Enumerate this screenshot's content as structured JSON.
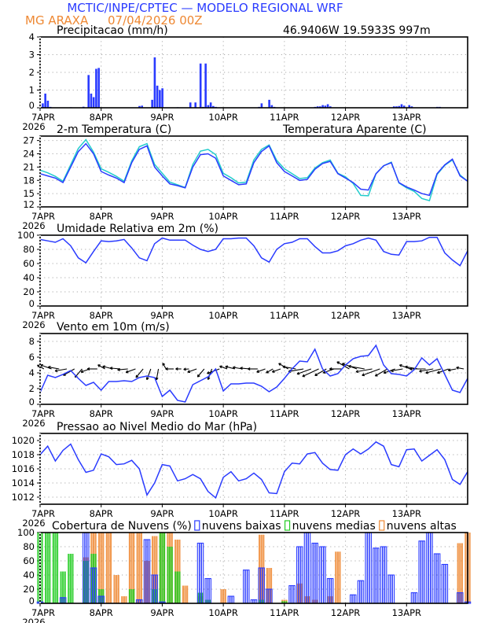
{
  "header": {
    "title": "MCTIC/INPE/CPTEC — MODELO REGIONAL WRF",
    "station": "MG ARAXA",
    "run": "07/04/2026 00Z",
    "location": "46.9406W 19.5933S 997m"
  },
  "colors": {
    "title": "#2a3bff",
    "orange": "#ee8833",
    "line": "#2a3bff",
    "apparent": "#22cccc",
    "medias": "#22cc22",
    "altas": "#ee8833",
    "baixas": "#2a3bff"
  },
  "x_axis": {
    "labels": [
      "7APR",
      "8APR",
      "9APR",
      "10APR",
      "11APR",
      "12APR",
      "13APR"
    ],
    "year": "2026",
    "start": "07APR2026 00Z",
    "end": "14APR2026 00Z",
    "step": "3h"
  },
  "chart_data": [
    {
      "type": "bar",
      "title": "Precipitacao (mm/h)",
      "ylim": [
        0,
        4
      ],
      "yticks": [
        0,
        1,
        2,
        3,
        4
      ],
      "grid": true,
      "series": [
        {
          "step": "1h",
          "points": [
            [
              1,
              0.25
            ],
            [
              2,
              0.8
            ],
            [
              3,
              0.4
            ],
            [
              4,
              0.05
            ],
            [
              12,
              0.03
            ],
            [
              17,
              0.06
            ],
            [
              19,
              1.85
            ],
            [
              20,
              0.8
            ],
            [
              21,
              0.6
            ],
            [
              22,
              2.2
            ],
            [
              23,
              2.25
            ],
            [
              39,
              0.1
            ],
            [
              40,
              0.12
            ],
            [
              44,
              0.45
            ],
            [
              45,
              2.85
            ],
            [
              46,
              1.25
            ],
            [
              47,
              1.0
            ],
            [
              48,
              1.1
            ],
            [
              54,
              0.03
            ],
            [
              59,
              0.3
            ],
            [
              61,
              0.3
            ],
            [
              63,
              2.5
            ],
            [
              64,
              0.05
            ],
            [
              65,
              2.5
            ],
            [
              66,
              0.15
            ],
            [
              67,
              0.3
            ],
            [
              68,
              0.1
            ],
            [
              69,
              0.05
            ],
            [
              86,
              0.05
            ],
            [
              87,
              0.25
            ],
            [
              90,
              0.45
            ],
            [
              91,
              0.15
            ],
            [
              92,
              0.05
            ],
            [
              108,
              0.05
            ],
            [
              109,
              0.08
            ],
            [
              110,
              0.08
            ],
            [
              111,
              0.15
            ],
            [
              112,
              0.12
            ],
            [
              113,
              0.2
            ],
            [
              114,
              0.08
            ],
            [
              139,
              0.08
            ],
            [
              140,
              0.08
            ],
            [
              141,
              0.1
            ],
            [
              142,
              0.2
            ],
            [
              143,
              0.12
            ],
            [
              145,
              0.15
            ],
            [
              146,
              0.08
            ],
            [
              156,
              0.05
            ],
            [
              157,
              0.05
            ]
          ]
        }
      ]
    },
    {
      "type": "line",
      "title": "2-m Temperatura (C)",
      "ylim": [
        12,
        28
      ],
      "yticks": [
        12,
        15,
        18,
        21,
        24,
        27
      ],
      "grid": true,
      "series": [
        {
          "name": "",
          "color": "#2a3bff",
          "values": [
            19.5,
            19,
            18.5,
            17.5,
            21,
            24.5,
            26.3,
            24,
            20,
            19.2,
            18.5,
            17.5,
            22,
            25,
            25.8,
            21,
            19,
            17.2,
            16.8,
            16.3,
            21,
            23.8,
            24,
            23,
            19,
            18,
            17,
            17.2,
            22,
            24.5,
            25.8,
            22,
            20,
            19,
            18,
            18.2,
            20.5,
            21.8,
            22.3,
            19.5,
            18.5,
            17.5,
            16,
            15.8,
            19.5,
            21.3,
            22,
            17.5,
            16.5,
            15.8,
            15,
            14.6,
            19.5,
            21.5,
            22.8,
            19,
            17.8
          ]
        },
        {
          "name": "Temperatura Aparente (C)",
          "color": "#22cccc",
          "values": [
            20.3,
            19.7,
            18.9,
            17.8,
            21.5,
            25.2,
            27.2,
            24.4,
            20.6,
            19.8,
            18.9,
            17.8,
            22.4,
            25.6,
            26.3,
            21.6,
            19.6,
            17.6,
            17,
            16.4,
            21.6,
            24.6,
            25,
            23.8,
            19.6,
            18.6,
            17.4,
            17.6,
            22.6,
            25,
            26,
            22.5,
            20.6,
            19.5,
            18.4,
            18.6,
            20.8,
            22,
            22.6,
            19.6,
            18.8,
            17.3,
            14.6,
            14.5,
            19.5,
            21.3,
            22.1,
            17.4,
            16.3,
            15.5,
            13.9,
            13.4,
            19.3,
            21.4,
            22.6,
            19.2,
            17.8
          ]
        }
      ]
    },
    {
      "type": "line",
      "title": "Umidade Relativa em 2m (%)",
      "ylim": [
        0,
        100
      ],
      "yticks": [
        0,
        20,
        40,
        60,
        80,
        100
      ],
      "grid": true,
      "series": [
        {
          "name": "",
          "color": "#2a3bff",
          "values": [
            94,
            92,
            90,
            95,
            85,
            68,
            61,
            77,
            92,
            91,
            92,
            94,
            82,
            68,
            64,
            88,
            96,
            93,
            93,
            93,
            86,
            80,
            77,
            80,
            95,
            95,
            96,
            96,
            85,
            68,
            62,
            80,
            88,
            90,
            95,
            95,
            84,
            75,
            75,
            78,
            85,
            88,
            93,
            96,
            93,
            77,
            73,
            72,
            91,
            91,
            92,
            97,
            97,
            75,
            65,
            57,
            78
          ]
        }
      ]
    },
    {
      "type": "line",
      "title": "Vento em 10m (m/s)",
      "ylim": [
        0,
        9
      ],
      "yticks": [
        0,
        2,
        4,
        6,
        8
      ],
      "grid": true,
      "series": [
        {
          "name": "",
          "color": "#2a3bff",
          "values": [
            1.5,
            3.7,
            3.4,
            3.8,
            4.3,
            3.3,
            2.4,
            2.8,
            1.8,
            2.9,
            2.9,
            3.0,
            2.9,
            3.4,
            3.6,
            3.4,
            1.0,
            1.8,
            0.5,
            0.3,
            2.5,
            3.0,
            3.5,
            4.5,
            1.7,
            2.6,
            2.6,
            2.7,
            2.7,
            2.3,
            1.6,
            2.2,
            3.3,
            4.5,
            5.5,
            5.4,
            7.0,
            4.5,
            3.6,
            3.9,
            5.0,
            5.8,
            6.1,
            6.2,
            7.5,
            5.0,
            3.9,
            3.8,
            3.6,
            4.4,
            5.9,
            5.0,
            5.8,
            3.8,
            1.8,
            1.5,
            3.3
          ]
        }
      ],
      "wind_vectors": {
        "direction_toward_deg": [
          150,
          160,
          170,
          190,
          210,
          230,
          200,
          180,
          150,
          165,
          175,
          185,
          200,
          230,
          250,
          260,
          120,
          180,
          180,
          185,
          200,
          230,
          250,
          200,
          160,
          165,
          170,
          175,
          180,
          200,
          210,
          200,
          150,
          170,
          190,
          200,
          205,
          210,
          200,
          180,
          150,
          160,
          170,
          190,
          200,
          210,
          200,
          190,
          160,
          170,
          180,
          190,
          195,
          200,
          190,
          170,
          140
        ]
      }
    },
    {
      "type": "line",
      "title": "Pressao ao Nivel Medio do Mar (hPa)",
      "ylim": [
        1011,
        1021
      ],
      "yticks": [
        1012,
        1014,
        1016,
        1018,
        1020
      ],
      "grid": true,
      "series": [
        {
          "name": "",
          "color": "#2a3bff",
          "values": [
            1018,
            1019.2,
            1017.1,
            1018.6,
            1019.5,
            1017.3,
            1015.5,
            1015.8,
            1018.1,
            1017.7,
            1016.6,
            1016.7,
            1017.2,
            1016.0,
            1012.3,
            1014.0,
            1016.6,
            1016.4,
            1014.3,
            1014.6,
            1015.2,
            1014.6,
            1012.8,
            1011.9,
            1014.8,
            1015.6,
            1014.3,
            1014.6,
            1015.4,
            1014.5,
            1012.6,
            1012.5,
            1015.6,
            1016.8,
            1016.7,
            1018.1,
            1018.3,
            1016.8,
            1015.9,
            1015.8,
            1018.0,
            1018.8,
            1018.1,
            1018.8,
            1019.8,
            1019.2,
            1016.6,
            1016.3,
            1018.7,
            1018.8,
            1017.1,
            1017.9,
            1018.7,
            1017.3,
            1014.5,
            1013.8,
            1015.6
          ]
        }
      ]
    },
    {
      "type": "bar",
      "title": "Cobertura de Nuvens (%)",
      "ylim": [
        0,
        100
      ],
      "yticks": [
        0,
        20,
        40,
        60,
        80,
        100
      ],
      "grid": true,
      "series": [
        {
          "name": "nuvens baixas",
          "color": "#2a3bff",
          "values": [
            2,
            0,
            0,
            8,
            0,
            0,
            100,
            50,
            10,
            0,
            0,
            0,
            0,
            5,
            90,
            40,
            2,
            0,
            0,
            0,
            0,
            85,
            35,
            0,
            0,
            10,
            0,
            47,
            5,
            50,
            20,
            0,
            0,
            25,
            80,
            100,
            85,
            80,
            35,
            0,
            0,
            12,
            32,
            100,
            78,
            80,
            40,
            0,
            0,
            15,
            88,
            100,
            70,
            55,
            0,
            15,
            2
          ]
        },
        {
          "name": "nuvens medias",
          "color": "#22cc22",
          "values": [
            100,
            100,
            100,
            45,
            70,
            0,
            60,
            70,
            20,
            0,
            0,
            0,
            20,
            0,
            0,
            20,
            100,
            80,
            45,
            0,
            0,
            15,
            5,
            0,
            0,
            0,
            0,
            0,
            0,
            5,
            0,
            0,
            3,
            0,
            0,
            0,
            0,
            0,
            0,
            0,
            0,
            0,
            0,
            0,
            0,
            0,
            0,
            0,
            0,
            0,
            0,
            0,
            0,
            0,
            0,
            0,
            0
          ]
        },
        {
          "name": "nuvens altas",
          "color": "#ee8833",
          "values": [
            0,
            0,
            0,
            0,
            0,
            0,
            65,
            100,
            100,
            100,
            40,
            10,
            100,
            100,
            60,
            95,
            100,
            100,
            90,
            25,
            0,
            10,
            0,
            0,
            20,
            0,
            0,
            0,
            0,
            97,
            50,
            0,
            5,
            0,
            28,
            10,
            5,
            0,
            10,
            73,
            0,
            0,
            0,
            0,
            0,
            0,
            0,
            0,
            0,
            0,
            0,
            0,
            0,
            0,
            0,
            85,
            100
          ]
        }
      ]
    }
  ]
}
